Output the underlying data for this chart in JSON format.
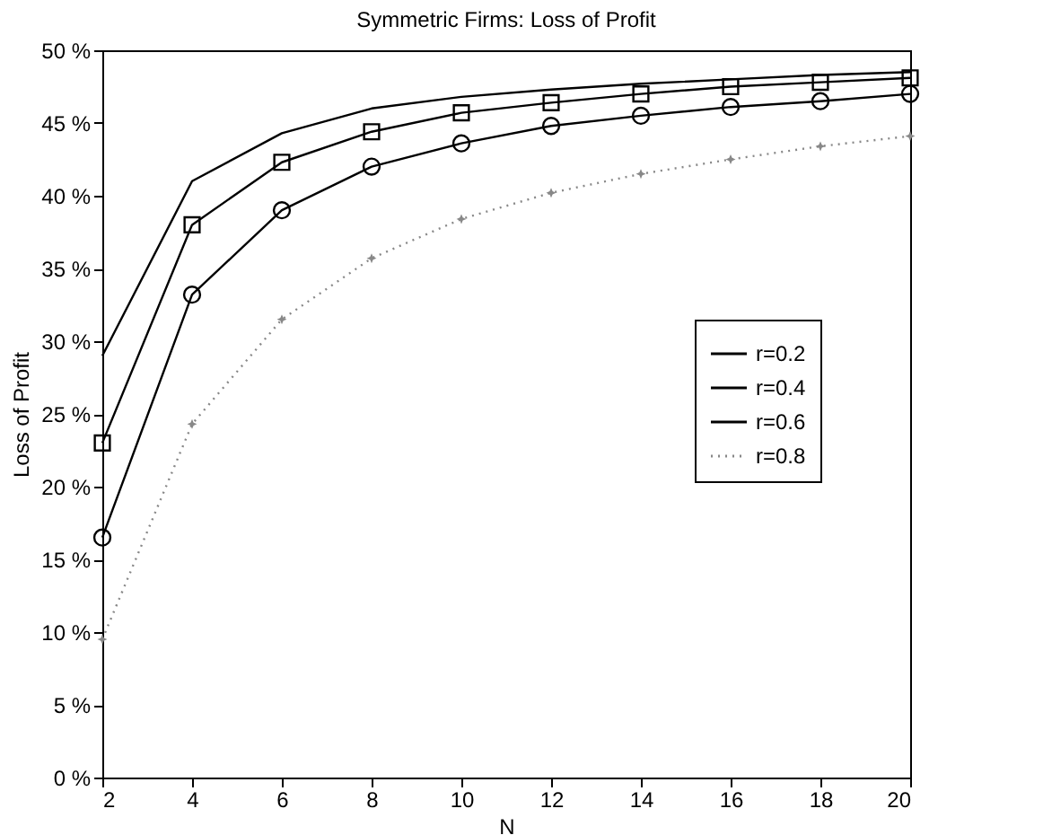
{
  "chart_data": {
    "type": "line",
    "title": "Symmetric Firms: Loss of Profit",
    "xlabel": "N",
    "ylabel": "Loss of Profit",
    "x": [
      2,
      4,
      6,
      8,
      10,
      12,
      14,
      16,
      18,
      20
    ],
    "series": [
      {
        "name": "r=0.2",
        "color": "#000000",
        "marker": "none",
        "line_style": "solid",
        "values": [
          29,
          41,
          44.3,
          46,
          46.8,
          47.3,
          47.7,
          48,
          48.3,
          48.5
        ]
      },
      {
        "name": "r=0.4",
        "color": "#000000",
        "marker": "square",
        "line_style": "solid",
        "values": [
          23,
          38,
          42.3,
          44.4,
          45.7,
          46.4,
          47,
          47.5,
          47.8,
          48.1
        ]
      },
      {
        "name": "r=0.6",
        "color": "#000000",
        "marker": "circle",
        "line_style": "solid",
        "values": [
          16.5,
          33.2,
          39,
          42,
          43.6,
          44.8,
          45.5,
          46.1,
          46.5,
          47
        ]
      },
      {
        "name": "r=0.8",
        "color": "#888888",
        "marker": "star",
        "line_style": "dotted",
        "values": [
          9.5,
          24.3,
          31.5,
          35.7,
          38.4,
          40.2,
          41.5,
          42.5,
          43.4,
          44.1
        ]
      }
    ],
    "xlim": [
      2,
      20
    ],
    "xticks": [
      2,
      4,
      6,
      8,
      10,
      12,
      14,
      16,
      18,
      20
    ],
    "ylim": [
      0,
      50
    ],
    "yticks": [
      {
        "value": 0,
        "label": "0 %"
      },
      {
        "value": 5,
        "label": "5 %"
      },
      {
        "value": 10,
        "label": "10 %"
      },
      {
        "value": 15,
        "label": "15 %"
      },
      {
        "value": 20,
        "label": "20 %"
      },
      {
        "value": 25,
        "label": "25 %"
      },
      {
        "value": 30,
        "label": "30 %"
      },
      {
        "value": 35,
        "label": "35 %"
      },
      {
        "value": 40,
        "label": "40 %"
      },
      {
        "value": 45,
        "label": "45 %"
      },
      {
        "value": 50,
        "label": "50 %"
      }
    ],
    "grid": false,
    "legend": "right"
  }
}
